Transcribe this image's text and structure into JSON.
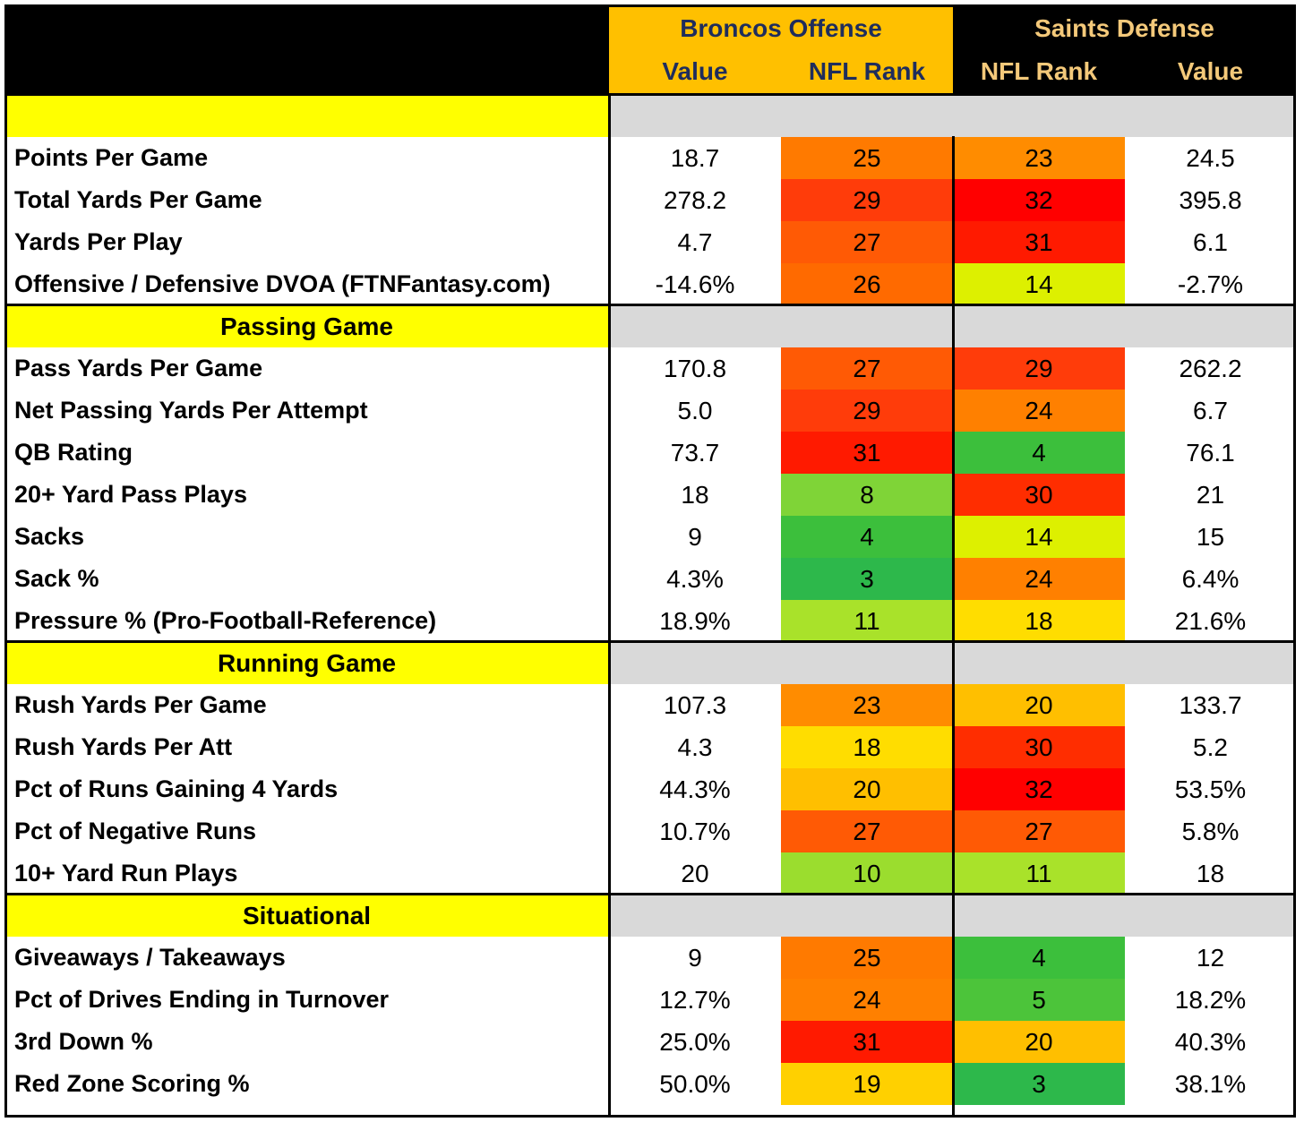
{
  "header": {
    "offense_title": "Broncos Offense",
    "defense_title": "Saints Defense",
    "off_value_label": "Value",
    "off_rank_label": "NFL Rank",
    "def_rank_label": "NFL Rank",
    "def_value_label": "Value"
  },
  "colors": {
    "header_bg": "#000000",
    "offense_header_bg": "#FFC000",
    "offense_header_text": "#1F2D5C",
    "defense_header_text": "#F4C97A",
    "section_label_bg": "#FFFF00",
    "section_band_bg": "#D9D9D9"
  },
  "sections": [
    {
      "title": "",
      "rows": [
        {
          "label": "Points Per Game",
          "off_value": "18.7",
          "off_rank": "25",
          "def_rank": "23",
          "def_value": "24.5",
          "off_color": "#FF7A00",
          "def_color": "#FF8C00"
        },
        {
          "label": "Total Yards Per Game",
          "off_value": "278.2",
          "off_rank": "29",
          "def_rank": "32",
          "def_value": "395.8",
          "off_color": "#FF3C0A",
          "def_color": "#FF0000"
        },
        {
          "label": "Yards Per Play",
          "off_value": "4.7",
          "off_rank": "27",
          "def_rank": "31",
          "def_value": "6.1",
          "off_color": "#FF5A05",
          "def_color": "#FF1A00"
        },
        {
          "label": "Offensive / Defensive DVOA (FTNFantasy.com)",
          "off_value": "-14.6%",
          "off_rank": "26",
          "def_rank": "14",
          "def_value": "-2.7%",
          "off_color": "#FF6A00",
          "def_color": "#DDF000"
        }
      ]
    },
    {
      "title": "Passing Game",
      "rows": [
        {
          "label": "Pass Yards Per Game",
          "off_value": "170.8",
          "off_rank": "27",
          "def_rank": "29",
          "def_value": "262.2",
          "off_color": "#FF5A05",
          "def_color": "#FF3C0A"
        },
        {
          "label": "Net Passing Yards Per Attempt",
          "off_value": "5.0",
          "off_rank": "29",
          "def_rank": "24",
          "def_value": "6.7",
          "off_color": "#FF3C0A",
          "def_color": "#FF8000"
        },
        {
          "label": "QB Rating",
          "off_value": "73.7",
          "off_rank": "31",
          "def_rank": "4",
          "def_value": "76.1",
          "off_color": "#FF1A00",
          "def_color": "#3CBF3C"
        },
        {
          "label": "20+ Yard Pass Plays",
          "off_value": "18",
          "off_rank": "8",
          "def_rank": "30",
          "def_value": "21",
          "off_color": "#7FD437",
          "def_color": "#FF2D00"
        },
        {
          "label": "Sacks",
          "off_value": "9",
          "off_rank": "4",
          "def_rank": "14",
          "def_value": "15",
          "off_color": "#3CBF3C",
          "def_color": "#DDF000"
        },
        {
          "label": "Sack %",
          "off_value": "4.3%",
          "off_rank": "3",
          "def_rank": "24",
          "def_value": "6.4%",
          "off_color": "#2DB84B",
          "def_color": "#FF8000"
        },
        {
          "label": "Pressure % (Pro-Football-Reference)",
          "off_value": "18.9%",
          "off_rank": "11",
          "def_rank": "18",
          "def_value": "21.6%",
          "off_color": "#A9E22A",
          "def_color": "#FFDD00"
        }
      ]
    },
    {
      "title": "Running Game",
      "rows": [
        {
          "label": "Rush Yards Per Game",
          "off_value": "107.3",
          "off_rank": "23",
          "def_rank": "20",
          "def_value": "133.7",
          "off_color": "#FF8C00",
          "def_color": "#FFBF00"
        },
        {
          "label": "Rush Yards Per Att",
          "off_value": "4.3",
          "off_rank": "18",
          "def_rank": "30",
          "def_value": "5.2",
          "off_color": "#FFDD00",
          "def_color": "#FF2D00"
        },
        {
          "label": "Pct of Runs Gaining 4 Yards",
          "off_value": "44.3%",
          "off_rank": "20",
          "def_rank": "32",
          "def_value": "53.5%",
          "off_color": "#FFBF00",
          "def_color": "#FF0000"
        },
        {
          "label": "Pct of Negative Runs",
          "off_value": "10.7%",
          "off_rank": "27",
          "def_rank": "27",
          "def_value": "5.8%",
          "off_color": "#FF5A05",
          "def_color": "#FF5A05"
        },
        {
          "label": "10+ Yard Run Plays",
          "off_value": "20",
          "off_rank": "10",
          "def_rank": "11",
          "def_value": "18",
          "off_color": "#9BDD2E",
          "def_color": "#A9E22A"
        }
      ]
    },
    {
      "title": "Situational",
      "rows": [
        {
          "label": "Giveaways / Takeaways",
          "off_value": "9",
          "off_rank": "25",
          "def_rank": "4",
          "def_value": "12",
          "off_color": "#FF7A00",
          "def_color": "#3CBF3C"
        },
        {
          "label": "Pct of Drives Ending in Turnover",
          "off_value": "12.7%",
          "off_rank": "24",
          "def_rank": "5",
          "def_value": "18.2%",
          "off_color": "#FF8000",
          "def_color": "#4CC43A"
        },
        {
          "label": "3rd Down %",
          "off_value": "25.0%",
          "off_rank": "31",
          "def_rank": "20",
          "def_value": "40.3%",
          "off_color": "#FF1A00",
          "def_color": "#FFBF00"
        },
        {
          "label": "Red Zone Scoring %",
          "off_value": "50.0%",
          "off_rank": "19",
          "def_rank": "3",
          "def_value": "38.1%",
          "off_color": "#FFD000",
          "def_color": "#2DB84B"
        }
      ]
    }
  ]
}
